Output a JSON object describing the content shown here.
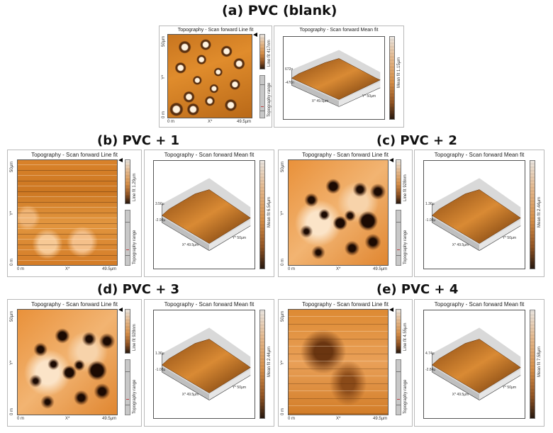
{
  "figure": {
    "panels": [
      {
        "id": "a",
        "heading": "(a) PVC (blank)",
        "image_2d": {
          "title": "Topography - Scan forward   Line fit",
          "y_top": "50µm",
          "y_mid": "Y*",
          "y_bottom": "0 m",
          "x_left": "0 m",
          "x_mid": "X*",
          "x_right": "49.5µm",
          "colorbar_label": "Line fit 417nm",
          "range_label": "Topography range"
        },
        "image_3d": {
          "title": "Topography - Scan forward   Mean fit",
          "z_top": "672n",
          "z_bottom": "-476n",
          "x_axis": "X* 49.5µm",
          "y_axis": "Y* 50µm",
          "colorbar_label": "Mean fit 1.15µm"
        }
      },
      {
        "id": "b",
        "heading": "(b) PVC + 1",
        "image_2d": {
          "title": "Topography - Scan forward   Line fit",
          "y_top": "50µm",
          "y_mid": "Y*",
          "y_bottom": "0 m",
          "x_left": "0 m",
          "x_mid": "X*",
          "x_right": "49.5µm",
          "colorbar_label": "Line fit 1.29µm",
          "range_label": "Topography range"
        },
        "image_3d": {
          "title": "Topography - Scan forward   Mean fit",
          "z_top": "3.56µ",
          "z_bottom": "-2.98µ",
          "x_axis": "X* 49.5µm",
          "y_axis": "Y* 50µm",
          "colorbar_label": "Mean fit 6.54µm"
        }
      },
      {
        "id": "c",
        "heading": "(c) PVC + 2",
        "image_2d": {
          "title": "Topography - Scan forward   Line fit",
          "y_top": "50µm",
          "y_mid": "Y*",
          "y_bottom": "0 m",
          "x_left": "0 m",
          "x_mid": "X*",
          "x_right": "49.5µm",
          "colorbar_label": "Line fit 928nm",
          "range_label": "Topography range"
        },
        "image_3d": {
          "title": "Topography - Scan forward   Mean fit",
          "z_top": "1.36µ",
          "z_bottom": "-1.08µ",
          "x_axis": "X* 49.5µm",
          "y_axis": "Y* 50µm",
          "colorbar_label": "Mean fit 2.44µm"
        }
      },
      {
        "id": "d",
        "heading": "(d) PVC + 3",
        "image_2d": {
          "title": "Topography - Scan forward   Line fit",
          "y_top": "50µm",
          "y_mid": "Y*",
          "y_bottom": "0 m",
          "x_left": "0 m",
          "x_mid": "X*",
          "x_right": "49.5µm",
          "colorbar_label": "Line fit 928nm",
          "range_label": "Topography range"
        },
        "image_3d": {
          "title": "Topography - Scan forward   Mean fit",
          "z_top": "1.36µ",
          "z_bottom": "-1.08µ",
          "x_axis": "X* 49.5µm",
          "y_axis": "Y* 50µm",
          "colorbar_label": "Mean fit 2.44µm"
        }
      },
      {
        "id": "e",
        "heading": "(e) PVC + 4",
        "image_2d": {
          "title": "Topography - Scan forward   Line fit",
          "y_top": "50µm",
          "y_mid": "Y*",
          "y_bottom": "0 m",
          "x_left": "0 m",
          "x_mid": "X*",
          "x_right": "49.5µm",
          "colorbar_label": "Line fit 4.55µm",
          "range_label": "Topography range"
        },
        "image_3d": {
          "title": "Topography - Scan forward   Mean fit",
          "z_top": "4.74µ",
          "z_bottom": "-2.84µ",
          "x_axis": "X* 49.5µm",
          "y_axis": "Y* 50µm",
          "colorbar_label": "Mean fit 7.58µm"
        }
      }
    ]
  },
  "colors": {
    "afm_light": "#f7c08a",
    "afm_mid": "#d9791f",
    "afm_dark": "#4a2408",
    "panel_border": "#b9b9b9"
  }
}
